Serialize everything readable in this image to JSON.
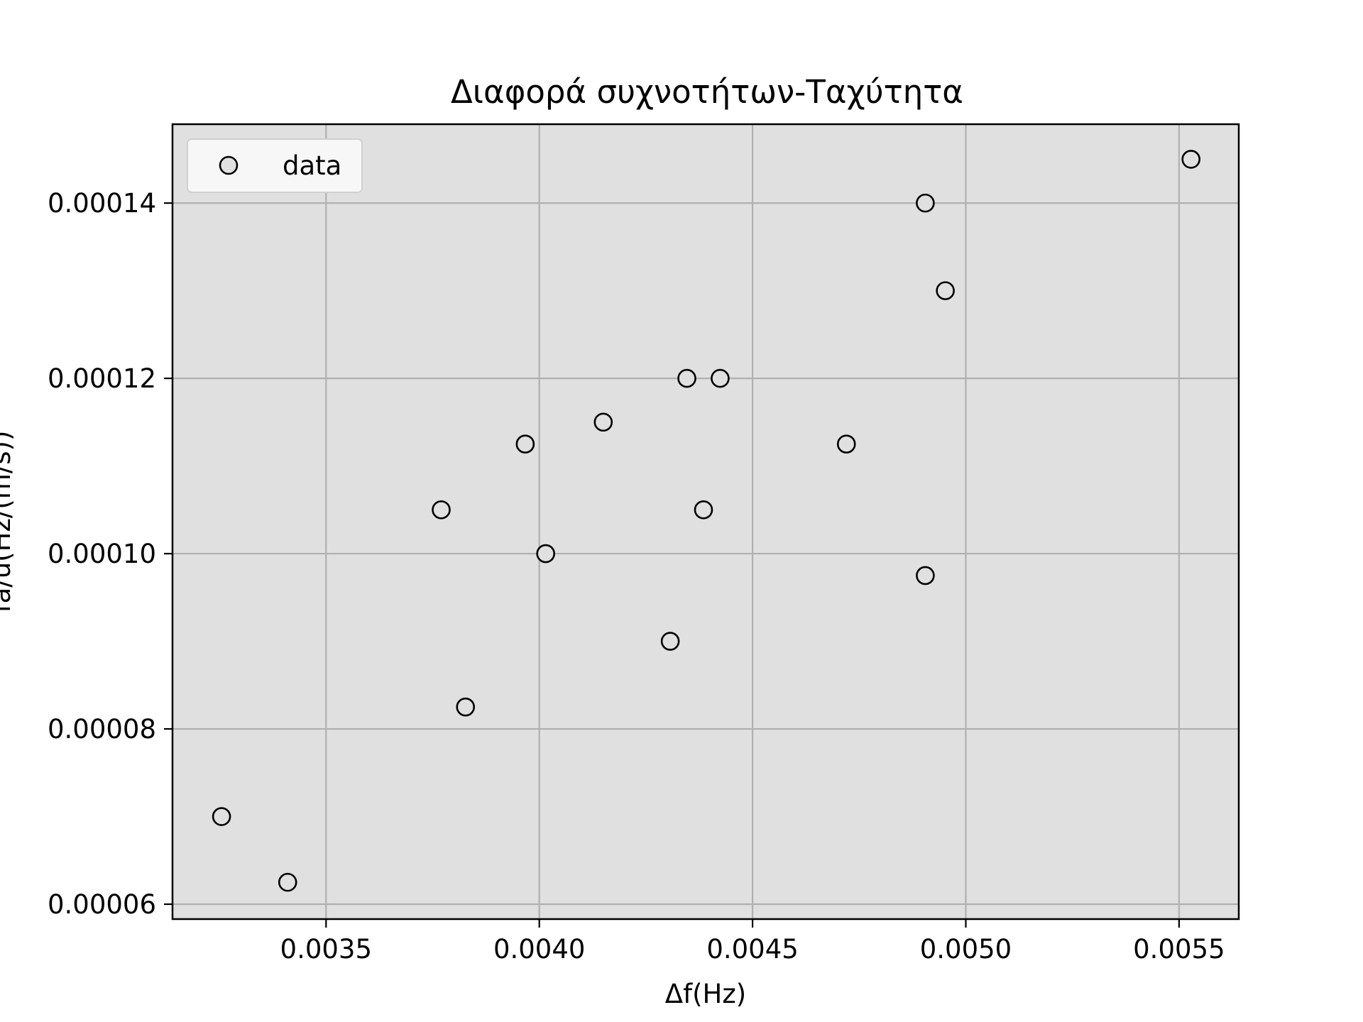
{
  "chart_data": {
    "type": "scatter",
    "title": "Διαφορά συχνοτήτων-Ταχύτητα",
    "xlabel": "Δf(Hz)",
    "ylabel": "fa/u(Hz/(m/s))",
    "xlim": [
      0.00314,
      0.00564
    ],
    "ylim": [
      5.83e-05,
      0.000149
    ],
    "xticks": [
      0.0035,
      0.004,
      0.0045,
      0.005,
      0.0055
    ],
    "xtick_labels": [
      "0.0035",
      "0.0040",
      "0.0045",
      "0.0050",
      "0.0055"
    ],
    "yticks": [
      6e-05,
      8e-05,
      0.0001,
      0.00012,
      0.00014
    ],
    "ytick_labels": [
      "0.00006",
      "0.00008",
      "0.00010",
      "0.00012",
      "0.00014"
    ],
    "grid": true,
    "legend_position": "upper-left",
    "marker": "hollow-circle",
    "colors": {
      "plot_bg": "#e0e0e0",
      "marker_fill": "#e0e0e0",
      "marker_edge": "#000000",
      "grid": "#b0b0b0"
    },
    "series": [
      {
        "name": "data",
        "points": [
          {
            "x": 0.003255,
            "y": 7e-05
          },
          {
            "x": 0.00341,
            "y": 6.25e-05
          },
          {
            "x": 0.00377,
            "y": 0.000105
          },
          {
            "x": 0.003827,
            "y": 8.25e-05
          },
          {
            "x": 0.003967,
            "y": 0.0001125
          },
          {
            "x": 0.004015,
            "y": 0.0001
          },
          {
            "x": 0.00415,
            "y": 0.000115
          },
          {
            "x": 0.004307,
            "y": 9e-05
          },
          {
            "x": 0.004346,
            "y": 0.00012
          },
          {
            "x": 0.004385,
            "y": 0.000105
          },
          {
            "x": 0.004424,
            "y": 0.00012
          },
          {
            "x": 0.00472,
            "y": 0.0001125
          },
          {
            "x": 0.004905,
            "y": 0.00014
          },
          {
            "x": 0.004905,
            "y": 9.75e-05
          },
          {
            "x": 0.004952,
            "y": 0.00013
          },
          {
            "x": 0.005528,
            "y": 0.000145
          }
        ]
      }
    ]
  }
}
